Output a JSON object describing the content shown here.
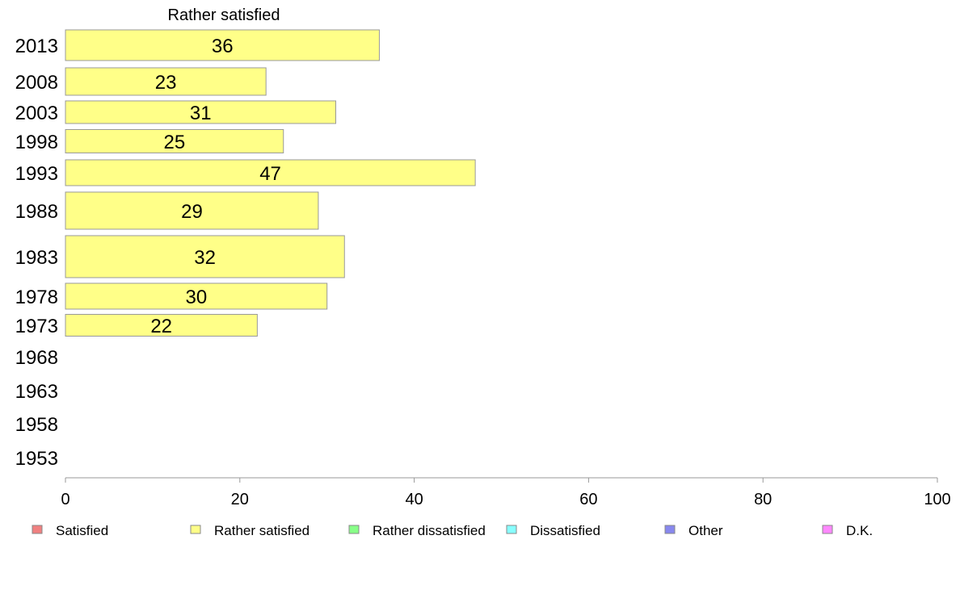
{
  "chart_data": {
    "type": "bar",
    "orientation": "horizontal",
    "title": "Rather satisfied",
    "xlabel": "",
    "ylabel": "",
    "xlim": [
      0,
      100
    ],
    "x_ticks": [
      0,
      20,
      40,
      60,
      80,
      100
    ],
    "categories": [
      "2013",
      "2008",
      "2003",
      "1998",
      "1993",
      "1988",
      "1983",
      "1978",
      "1973",
      "1968",
      "1963",
      "1958",
      "1953"
    ],
    "values": [
      36,
      23,
      31,
      25,
      47,
      29,
      32,
      30,
      22,
      null,
      null,
      null,
      null
    ],
    "data_labels": [
      "36",
      "23",
      "31",
      "25",
      "47",
      "29",
      "32",
      "30",
      "22",
      "",
      "",
      "",
      ""
    ],
    "bar_color": "#ffff88",
    "legend_position": "bottom",
    "legend": [
      {
        "name": "Satisfied",
        "color": "#f08080"
      },
      {
        "name": "Rather satisfied",
        "color": "#ffff88"
      },
      {
        "name": "Rather dissatisfied",
        "color": "#88ff88"
      },
      {
        "name": "Dissatisfied",
        "color": "#88ffff"
      },
      {
        "name": "Other",
        "color": "#8888ee"
      },
      {
        "name": "D.K.",
        "color": "#ff88ff"
      }
    ]
  }
}
